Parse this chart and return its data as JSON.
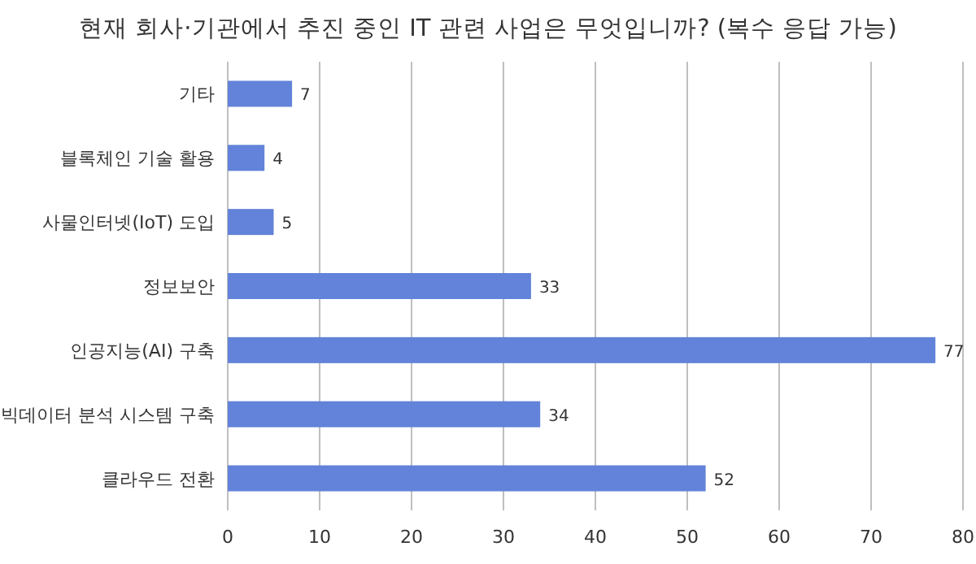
{
  "chart_data": {
    "type": "bar",
    "orientation": "horizontal",
    "title": "현재 회사·기관에서 추진 중인 IT 관련 사업은 무엇입니까? (복수 응답 가능)",
    "categories": [
      "기타",
      "블록체인 기술 활용",
      "사물인터넷(IoT) 도입",
      "정보보안",
      "인공지능(AI) 구축",
      "빅데이터 분석 시스템 구축",
      "클라우드 전환"
    ],
    "values": [
      7,
      4,
      5,
      33,
      77,
      34,
      52
    ],
    "color": "#6283d9",
    "xlim": [
      0,
      80
    ],
    "xticks": [
      0,
      10,
      20,
      30,
      40,
      50,
      60,
      70,
      80
    ],
    "grid": "x",
    "data_labels": true
  }
}
